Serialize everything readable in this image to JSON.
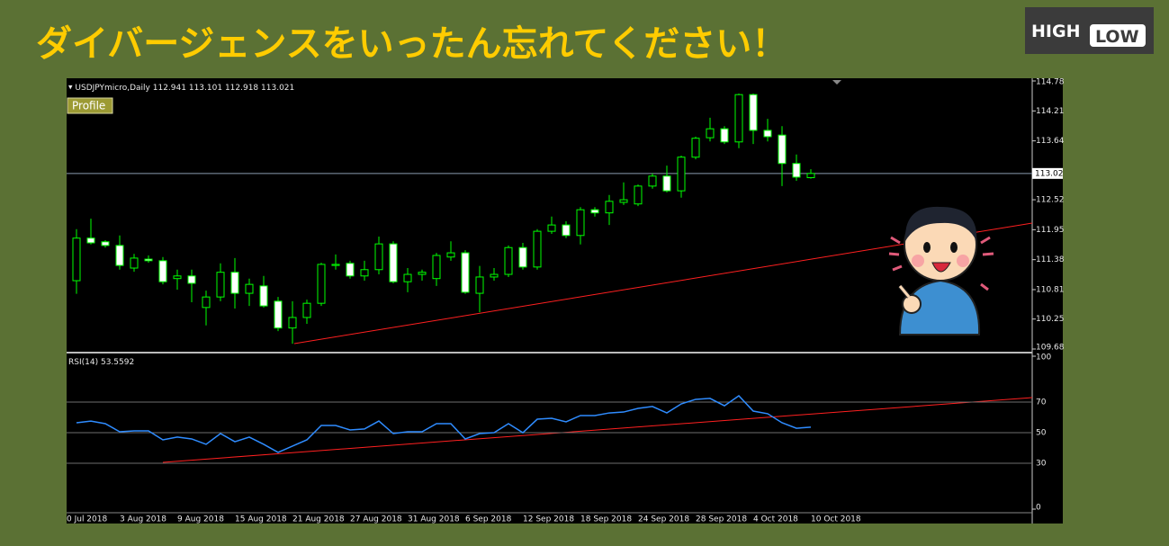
{
  "title": "ダイバージェンスをいったん忘れてください！",
  "logo": {
    "high": "HIGH",
    "low": "LOW"
  },
  "button": "Profile",
  "chart_data": [
    {
      "type": "candlestick",
      "label": "USDJPYmicro,Daily",
      "ohlc": [
        112.941,
        113.101,
        112.918,
        113.021
      ],
      "categories": [
        "0 Jul 2018",
        null,
        null,
        "3 Aug 2018",
        null,
        null,
        null,
        "9 Aug 2018",
        null,
        null,
        null,
        "15 Aug 2018",
        null,
        null,
        null,
        "21 Aug 2018",
        null,
        null,
        null,
        "27 Aug 2018",
        null,
        null,
        null,
        "31 Aug 2018",
        null,
        null,
        null,
        "6 Sep 2018",
        null,
        null,
        null,
        "12 Sep 2018",
        null,
        null,
        null,
        "18 Sep 2018",
        null,
        null,
        null,
        "24 Sep 2018",
        null,
        null,
        null,
        "28 Sep 2018",
        null,
        null,
        null,
        "4 Oct 2018",
        null,
        null,
        null,
        "10 Oct 2018"
      ],
      "open": [
        110.98,
        111.79,
        111.72,
        111.65,
        111.22,
        111.39,
        111.36,
        111.02,
        111.07,
        110.47,
        110.67,
        111.14,
        110.74,
        110.88,
        110.59,
        110.08,
        110.28,
        110.55,
        111.27,
        111.31,
        111.07,
        111.19,
        111.68,
        110.96,
        111.1,
        111.02,
        111.43,
        111.51,
        110.74,
        111.05,
        111.1,
        111.61,
        111.24,
        111.92,
        112.04,
        111.84,
        112.33,
        112.27,
        112.47,
        112.44,
        112.78,
        112.97,
        112.69,
        113.33,
        113.7,
        113.87,
        113.62,
        114.52,
        113.84,
        113.75,
        113.21,
        112.94
      ],
      "high": [
        111.96,
        112.16,
        111.75,
        111.84,
        111.49,
        111.46,
        111.43,
        111.19,
        111.19,
        110.79,
        111.31,
        111.41,
        111.02,
        111.07,
        110.67,
        110.59,
        110.62,
        111.32,
        111.48,
        111.36,
        111.36,
        111.82,
        111.73,
        111.22,
        111.19,
        111.51,
        111.73,
        111.56,
        111.26,
        111.22,
        111.65,
        111.7,
        111.96,
        112.2,
        112.11,
        112.38,
        112.38,
        112.61,
        112.85,
        112.81,
        113.02,
        113.17,
        113.36,
        113.72,
        114.08,
        113.92,
        114.54,
        114.54,
        114.06,
        113.92,
        113.38,
        113.1
      ],
      "low": [
        110.73,
        111.67,
        111.61,
        111.19,
        111.15,
        111.32,
        110.91,
        110.81,
        110.57,
        110.13,
        110.59,
        110.45,
        110.5,
        110.47,
        110.02,
        109.78,
        110.16,
        110.5,
        111.19,
        111.02,
        110.98,
        111.1,
        110.93,
        110.76,
        110.98,
        110.88,
        111.36,
        110.73,
        110.38,
        110.98,
        111.05,
        111.19,
        111.19,
        111.87,
        111.79,
        111.67,
        112.2,
        112.04,
        112.42,
        112.4,
        112.73,
        112.66,
        112.56,
        113.29,
        113.63,
        113.58,
        113.5,
        113.58,
        113.63,
        112.78,
        112.88,
        112.92
      ],
      "close": [
        111.79,
        111.7,
        111.65,
        111.27,
        111.41,
        111.36,
        110.96,
        111.07,
        110.93,
        110.67,
        111.14,
        110.74,
        110.91,
        110.5,
        110.08,
        110.28,
        110.55,
        111.29,
        111.29,
        111.07,
        111.19,
        111.68,
        110.96,
        111.1,
        111.14,
        111.46,
        111.51,
        110.76,
        111.05,
        111.1,
        111.61,
        111.24,
        111.92,
        112.04,
        111.84,
        112.33,
        112.27,
        112.49,
        112.52,
        112.78,
        112.97,
        112.69,
        113.33,
        113.69,
        113.87,
        113.62,
        114.52,
        113.84,
        113.72,
        113.21,
        112.95,
        113.02
      ],
      "up_color": "#000000",
      "down_color": "#ffffff",
      "wick_color": "#00ff00",
      "last_price": 113.02,
      "ylim": [
        109.68,
        114.78
      ],
      "yticks": [
        109.68,
        110.25,
        110.81,
        111.38,
        111.95,
        112.52,
        113.64,
        114.21,
        114.78
      ]
    },
    {
      "type": "line",
      "label": "RSI(14)",
      "last_value": 53.5592,
      "color": "#2f8cff",
      "values": [
        56.5,
        57.6,
        55.9,
        50.6,
        51.2,
        51.2,
        45.3,
        47.1,
        45.9,
        42.4,
        49.4,
        44.1,
        47.1,
        42.4,
        37.1,
        41.2,
        45.3,
        54.7,
        54.7,
        51.8,
        52.4,
        57.6,
        49.4,
        50.6,
        50.6,
        55.9,
        55.9,
        45.9,
        49.4,
        50.0,
        55.9,
        50.0,
        58.8,
        59.4,
        57.1,
        61.2,
        61.2,
        62.9,
        63.5,
        65.9,
        67.1,
        62.9,
        68.8,
        71.8,
        72.4,
        67.6,
        74.1,
        64.1,
        62.4,
        56.5,
        52.9,
        53.6
      ],
      "ylim": [
        0,
        100
      ],
      "yticks": [
        0,
        30,
        50,
        70,
        100
      ]
    }
  ]
}
